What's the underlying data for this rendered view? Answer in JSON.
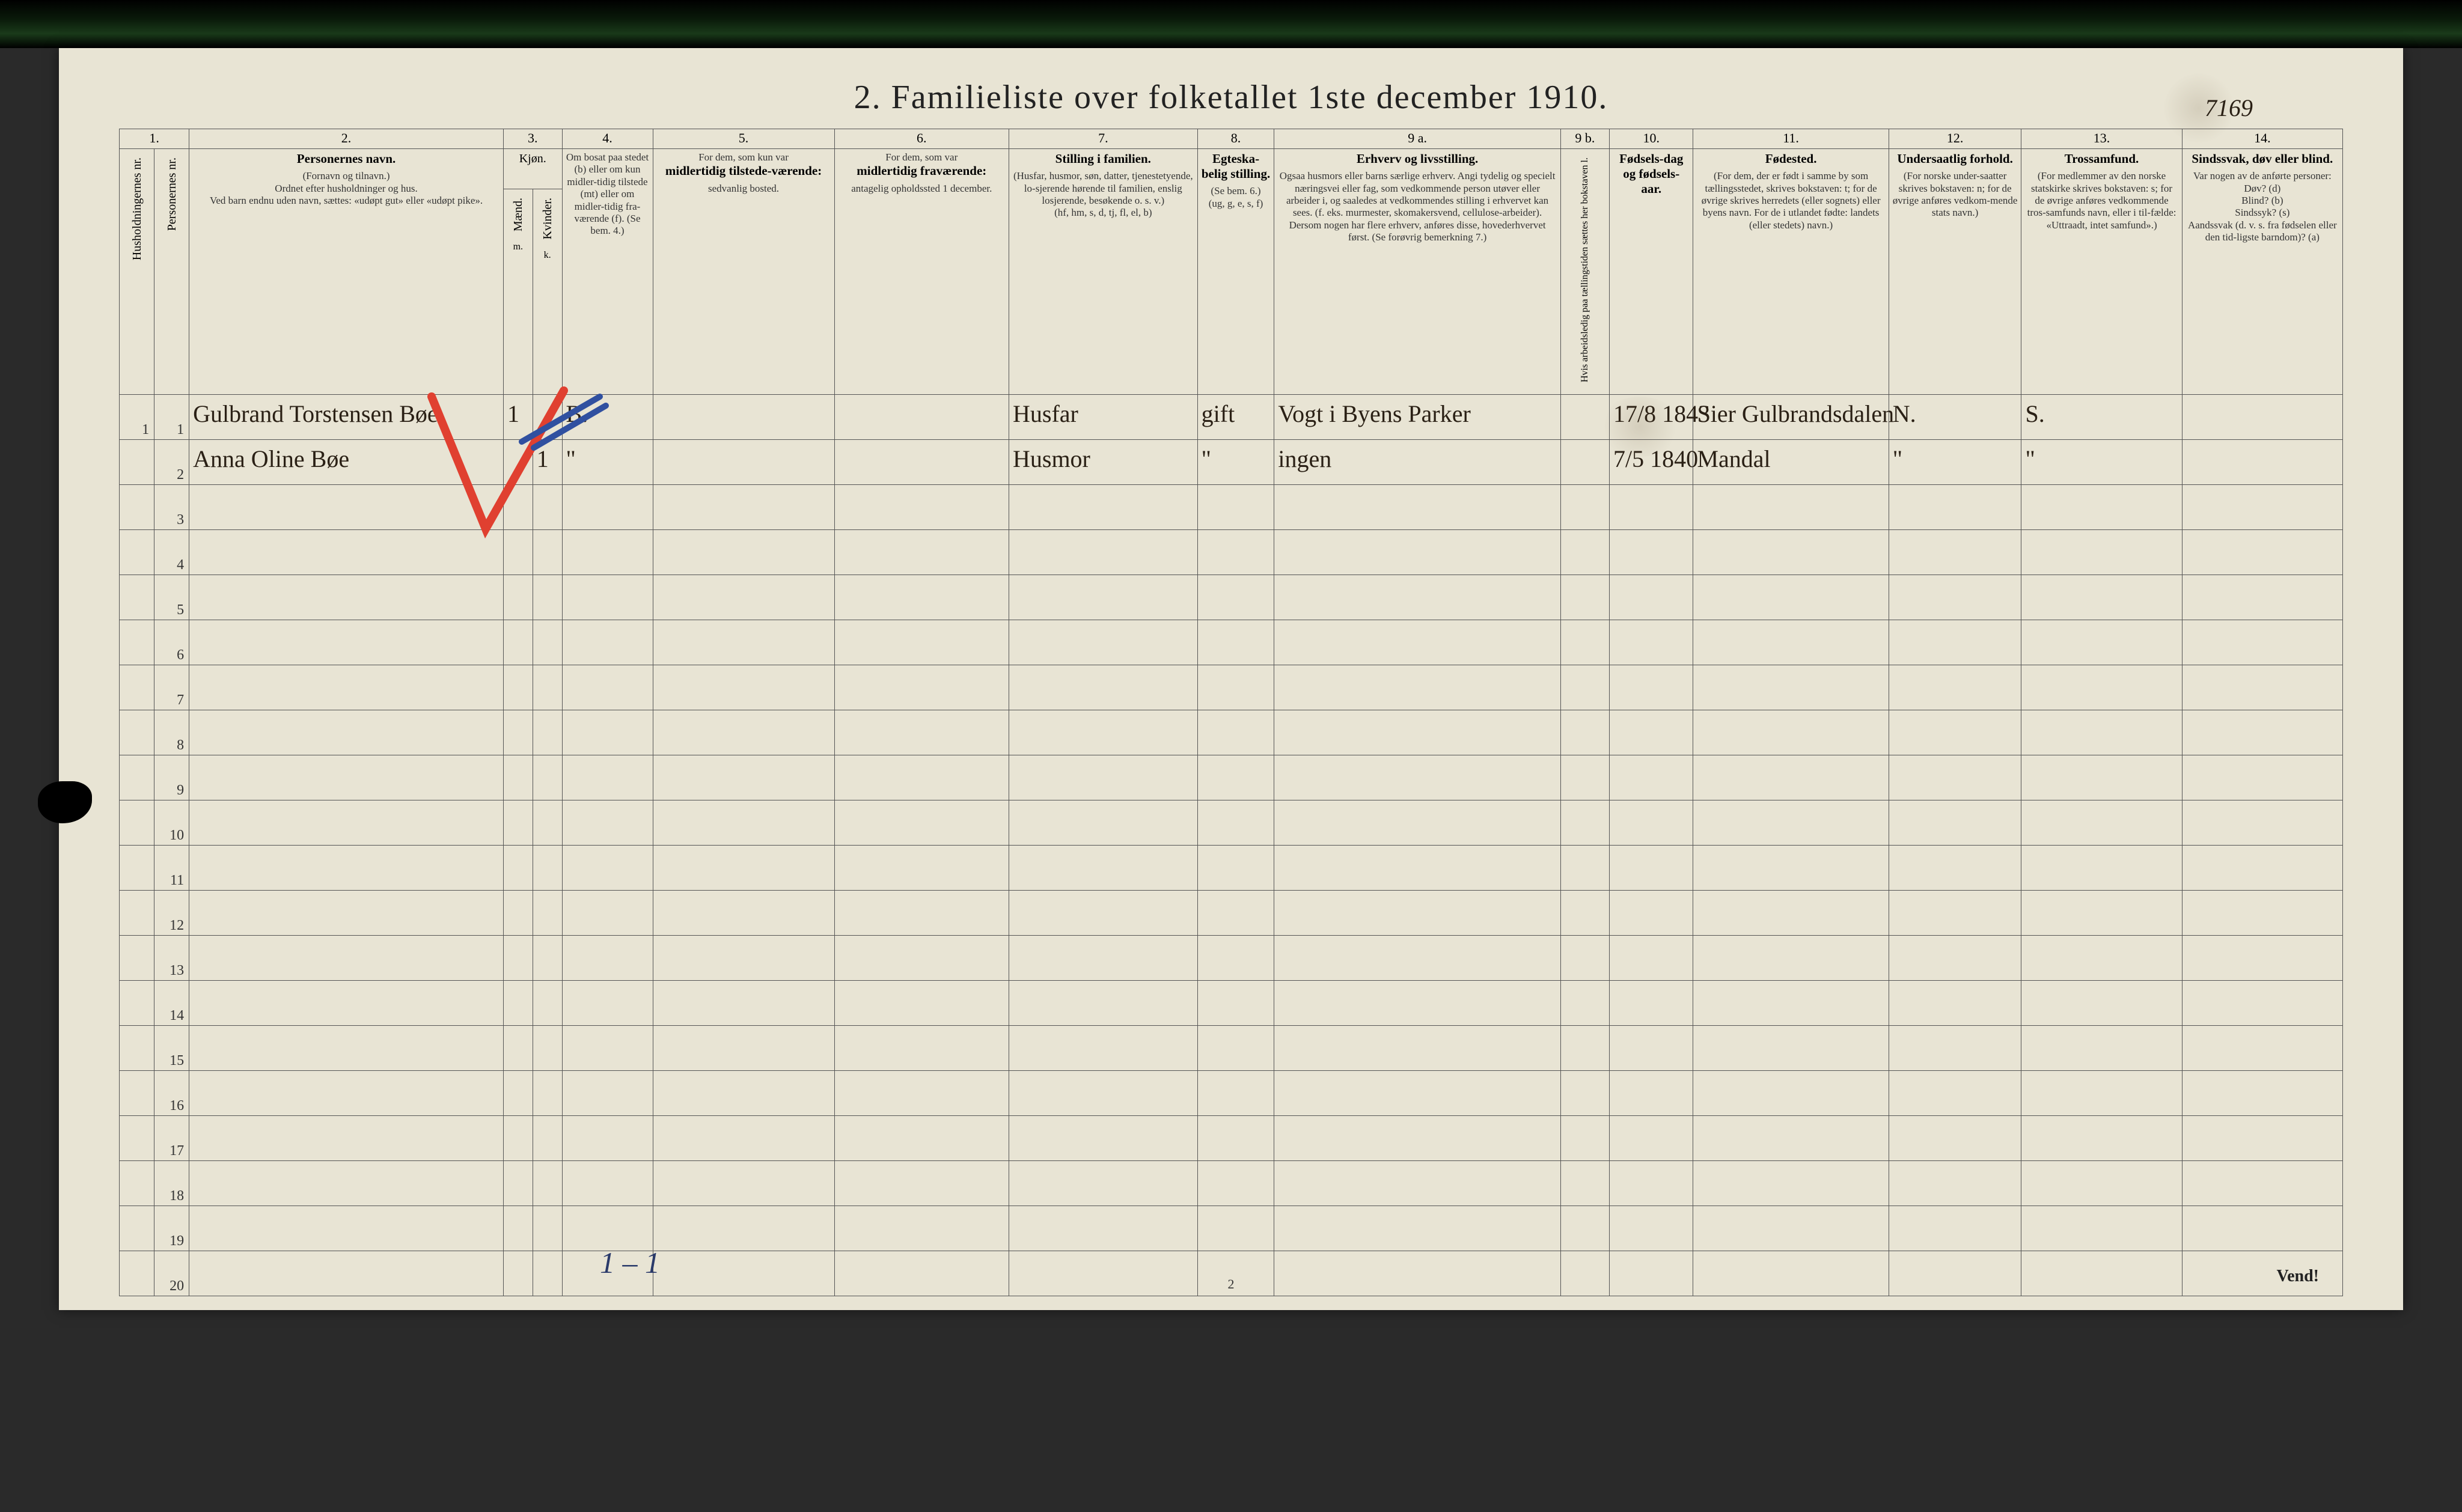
{
  "title": "2.  Familieliste over folketallet 1ste december 1910.",
  "topright_annotation": "7169",
  "bottom_annotation": "1 – 1",
  "footer_pagenum": "2",
  "vend": "Vend!",
  "column_numbers": [
    "1.",
    "2.",
    "3.",
    "4.",
    "5.",
    "6.",
    "7.",
    "8.",
    "9 a.",
    "9 b.",
    "10.",
    "11.",
    "12.",
    "13.",
    "14."
  ],
  "headers": {
    "c1a": "Husholdningernes nr.",
    "c1b": "Personernes nr.",
    "c2_title": "Personernes navn.",
    "c2_sub": "(Fornavn og tilnavn.)\nOrdnet efter husholdninger og hus.\nVed barn endnu uden navn, sættes: «udøpt gut» eller «udøpt pike».",
    "c3_title": "Kjøn.",
    "c3_m": "Mænd.",
    "c3_k": "Kvinder.",
    "c3_mk": "m.    k.",
    "c4": "Om bosat paa stedet (b) eller om kun midler-tidig tilstede (mt) eller om midler-tidig fra-værende (f). (Se bem. 4.)",
    "c5_title": "For dem, som kun var",
    "c5_b": "midlertidig tilstede-værende:",
    "c5_sub": "sedvanlig bosted.",
    "c6_title": "For dem, som var",
    "c6_b": "midlertidig fraværende:",
    "c6_sub": "antagelig opholdssted 1 december.",
    "c7_title": "Stilling i familien.",
    "c7_sub": "(Husfar, husmor, søn, datter, tjenestetyende, lo-sjerende hørende til familien, enslig losjerende, besøkende o. s. v.)\n(hf, hm, s, d, tj, fl, el, b)",
    "c8_title": "Egteska-belig stilling.",
    "c8_sub": "(Se bem. 6.)\n(ug, g, e, s, f)",
    "c9a_title": "Erhverv og livsstilling.",
    "c9a_sub": "Ogsaa husmors eller barns særlige erhverv. Angi tydelig og specielt næringsvei eller fag, som vedkommende person utøver eller arbeider i, og saaledes at vedkommendes stilling i erhvervet kan sees. (f. eks. murmester, skomakersvend, cellulose-arbeider). Dersom nogen har flere erhverv, anføres disse, hovederhvervet først. (Se forøvrig bemerkning 7.)",
    "c9b": "Hvis arbeidsledig paa tællingstiden sættes her bokstaven l.",
    "c10_title": "Fødsels-dag og fødsels-aar.",
    "c11_title": "Fødested.",
    "c11_sub": "(For dem, der er født i samme by som tællingsstedet, skrives bokstaven: t; for de øvrige skrives herredets (eller sognets) eller byens navn. For de i utlandet fødte: landets (eller stedets) navn.)",
    "c12_title": "Undersaatlig forhold.",
    "c12_sub": "(For norske under-saatter skrives bokstaven: n; for de øvrige anføres vedkom-mende stats navn.)",
    "c13_title": "Trossamfund.",
    "c13_sub": "(For medlemmer av den norske statskirke skrives bokstaven: s; for de øvrige anføres vedkommende tros-samfunds navn, eller i til-fælde: «Uttraadt, intet samfund».)",
    "c14_title": "Sindssvak, døv eller blind.",
    "c14_sub": "Var nogen av de anførte personer:\nDøv? (d)\nBlind? (b)\nSindssyk? (s)\nAandssvak (d. v. s. fra fødselen eller den tid-ligste barndom)? (a)"
  },
  "rows": [
    {
      "n": "1",
      "c1a": "1",
      "c1b": "1",
      "name": "Gulbrand Torstensen Bøe",
      "mk": "1",
      "kj": "",
      "c4": "B.",
      "c7": "Husfar",
      "c8": "gift",
      "c9a": "Vogt i Byens Parker",
      "c10": "17/8 1843",
      "c11": "Sier Gulbrandsdalen",
      "c12": "N.",
      "c13": "S."
    },
    {
      "n": "2",
      "c1a": "",
      "c1b": "2",
      "name": "Anna Oline Bøe",
      "mk": "",
      "kj": "1",
      "c4": "\"",
      "c7": "Husmor",
      "c8": "\"",
      "c9a": "ingen",
      "c10": "7/5 1840",
      "c11": "Mandal",
      "c12": "\"",
      "c13": "\""
    },
    {
      "n": "3"
    },
    {
      "n": "4"
    },
    {
      "n": "5"
    },
    {
      "n": "6"
    },
    {
      "n": "7"
    },
    {
      "n": "8"
    },
    {
      "n": "9"
    },
    {
      "n": "10"
    },
    {
      "n": "11"
    },
    {
      "n": "12"
    },
    {
      "n": "13"
    },
    {
      "n": "14"
    },
    {
      "n": "15"
    },
    {
      "n": "16"
    },
    {
      "n": "17"
    },
    {
      "n": "18"
    },
    {
      "n": "19"
    },
    {
      "n": "20"
    }
  ],
  "colors": {
    "paper": "#e8e4d4",
    "ink": "#222",
    "red_pencil": "#e04030",
    "blue_pencil": "#3050a0",
    "handwriting": "#2a2015"
  }
}
